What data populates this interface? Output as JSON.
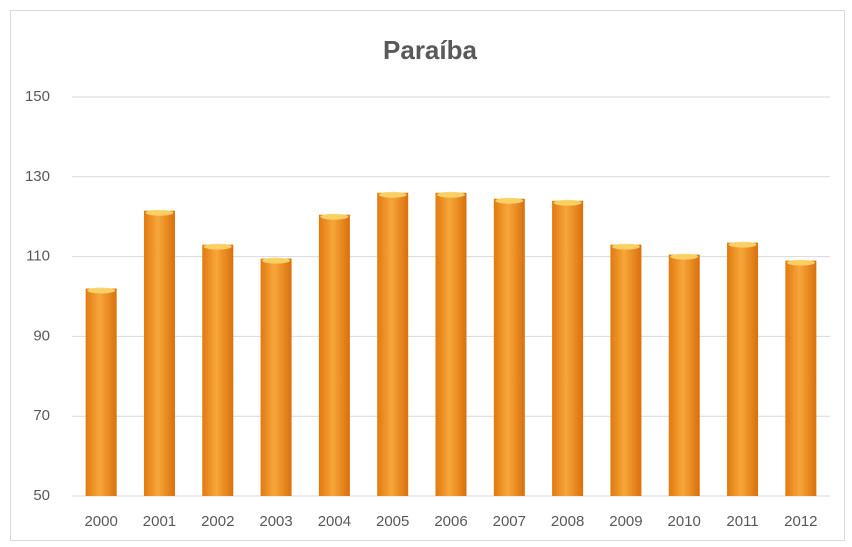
{
  "chart_data": {
    "type": "bar",
    "title": "Paraíba",
    "categories": [
      "2000",
      "2001",
      "2002",
      "2003",
      "2004",
      "2005",
      "2006",
      "2007",
      "2008",
      "2009",
      "2010",
      "2011",
      "2012"
    ],
    "values": [
      102,
      121.5,
      113,
      109.5,
      120.5,
      126,
      126,
      124.5,
      124,
      113,
      110.5,
      113.5,
      109
    ],
    "color": "#f39a2a",
    "ylim": [
      50,
      150
    ],
    "yticks": [
      50,
      70,
      90,
      110,
      130,
      150
    ],
    "grid": true
  }
}
